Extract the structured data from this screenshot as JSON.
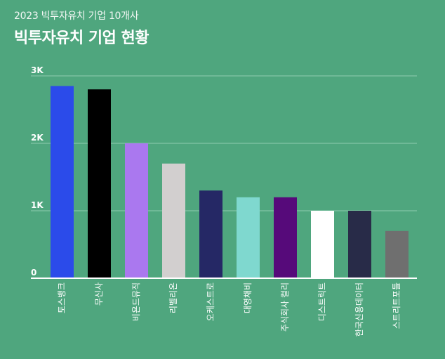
{
  "header": {
    "subtitle": "2023 빅투자유치 기업 10개사",
    "title": "빅투자유치 기업 현황"
  },
  "colors": {
    "background": "#4fa67e",
    "gridline": "#8fccb0",
    "axis": "#ffffff"
  },
  "chart_data": {
    "type": "bar",
    "title": "빅투자유치 기업 현황",
    "subtitle": "2023 빅투자유치 기업 10개사",
    "categories": [
      "토스뱅크",
      "무신사",
      "비욘드뮤직",
      "리벨리온",
      "오케스트로",
      "대영채비",
      "주식회사 컬리",
      "디스트릭트",
      "한국신용데이터",
      "스트리트포틀"
    ],
    "values": [
      2850,
      2800,
      2000,
      1700,
      1300,
      1200,
      1200,
      1000,
      1000,
      700
    ],
    "bar_colors": [
      "#2b4bea",
      "#000000",
      "#aa78ef",
      "#d2cfcf",
      "#252865",
      "#7fd8cf",
      "#560a7a",
      "#ffffff",
      "#282b48",
      "#6f6f6f"
    ],
    "ylim": [
      0,
      3000
    ],
    "yticks": [
      {
        "value": 0,
        "label": "0"
      },
      {
        "value": 1000,
        "label": "1K"
      },
      {
        "value": 2000,
        "label": "2K"
      },
      {
        "value": 3000,
        "label": "3K"
      }
    ],
    "xlabel": "",
    "ylabel": "",
    "grid": true,
    "legend": "none"
  }
}
